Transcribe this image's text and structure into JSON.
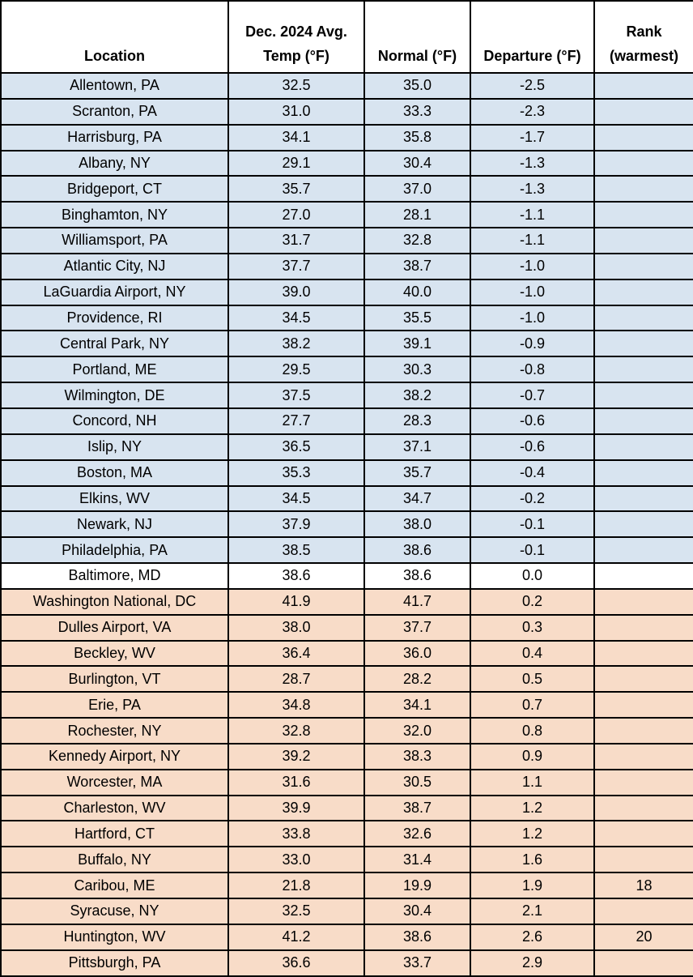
{
  "chart_data": {
    "type": "table",
    "columns": [
      "Location",
      "Dec. 2024 Avg. Temp (°F)",
      "Normal (°F)",
      "Departure (°F)",
      "Rank (warmest)"
    ],
    "rows": [
      [
        "Allentown, PA",
        "32.5",
        "35.0",
        "-2.5",
        ""
      ],
      [
        "Scranton, PA",
        "31.0",
        "33.3",
        "-2.3",
        ""
      ],
      [
        "Harrisburg, PA",
        "34.1",
        "35.8",
        "-1.7",
        ""
      ],
      [
        "Albany, NY",
        "29.1",
        "30.4",
        "-1.3",
        ""
      ],
      [
        "Bridgeport, CT",
        "35.7",
        "37.0",
        "-1.3",
        ""
      ],
      [
        "Binghamton, NY",
        "27.0",
        "28.1",
        "-1.1",
        ""
      ],
      [
        "Williamsport, PA",
        "31.7",
        "32.8",
        "-1.1",
        ""
      ],
      [
        "Atlantic City, NJ",
        "37.7",
        "38.7",
        "-1.0",
        ""
      ],
      [
        "LaGuardia Airport, NY",
        "39.0",
        "40.0",
        "-1.0",
        ""
      ],
      [
        "Providence, RI",
        "34.5",
        "35.5",
        "-1.0",
        ""
      ],
      [
        "Central Park, NY",
        "38.2",
        "39.1",
        "-0.9",
        ""
      ],
      [
        "Portland, ME",
        "29.5",
        "30.3",
        "-0.8",
        ""
      ],
      [
        "Wilmington, DE",
        "37.5",
        "38.2",
        "-0.7",
        ""
      ],
      [
        "Concord, NH",
        "27.7",
        "28.3",
        "-0.6",
        ""
      ],
      [
        "Islip, NY",
        "36.5",
        "37.1",
        "-0.6",
        ""
      ],
      [
        "Boston, MA",
        "35.3",
        "35.7",
        "-0.4",
        ""
      ],
      [
        "Elkins, WV",
        "34.5",
        "34.7",
        "-0.2",
        ""
      ],
      [
        "Newark, NJ",
        "37.9",
        "38.0",
        "-0.1",
        ""
      ],
      [
        "Philadelphia, PA",
        "38.5",
        "38.6",
        "-0.1",
        ""
      ],
      [
        "Baltimore, MD",
        "38.6",
        "38.6",
        "0.0",
        ""
      ],
      [
        "Washington National, DC",
        "41.9",
        "41.7",
        "0.2",
        ""
      ],
      [
        "Dulles Airport, VA",
        "38.0",
        "37.7",
        "0.3",
        ""
      ],
      [
        "Beckley, WV",
        "36.4",
        "36.0",
        "0.4",
        ""
      ],
      [
        "Burlington, VT",
        "28.7",
        "28.2",
        "0.5",
        ""
      ],
      [
        "Erie, PA",
        "34.8",
        "34.1",
        "0.7",
        ""
      ],
      [
        "Rochester, NY",
        "32.8",
        "32.0",
        "0.8",
        ""
      ],
      [
        "Kennedy Airport, NY",
        "39.2",
        "38.3",
        "0.9",
        ""
      ],
      [
        "Worcester, MA",
        "31.6",
        "30.5",
        "1.1",
        ""
      ],
      [
        "Charleston, WV",
        "39.9",
        "38.7",
        "1.2",
        ""
      ],
      [
        "Hartford, CT",
        "33.8",
        "32.6",
        "1.2",
        ""
      ],
      [
        "Buffalo, NY",
        "33.0",
        "31.4",
        "1.6",
        ""
      ],
      [
        "Caribou, ME",
        "21.8",
        "19.9",
        "1.9",
        "18"
      ],
      [
        "Syracuse, NY",
        "32.5",
        "30.4",
        "2.1",
        ""
      ],
      [
        "Huntington, WV",
        "41.2",
        "38.6",
        "2.6",
        "20"
      ],
      [
        "Pittsburgh, PA",
        "36.6",
        "33.7",
        "2.9",
        ""
      ]
    ],
    "title": "",
    "legend": "row shading: blue = below normal departure, white = zero departure, orange = above normal departure"
  },
  "header": {
    "location": "Location",
    "temp_line1": "Dec. 2024 Avg.",
    "temp_line2": "Temp (°F)",
    "normal": "Normal (°F)",
    "departure": "Departure (°F)",
    "rank_line1": "Rank",
    "rank_line2": "(warmest)"
  },
  "colors": {
    "below_normal_row": "#D8E4F0",
    "zero_row": "#FFFFFF",
    "above_normal_row": "#F8DCC8",
    "grid": "#000000"
  }
}
